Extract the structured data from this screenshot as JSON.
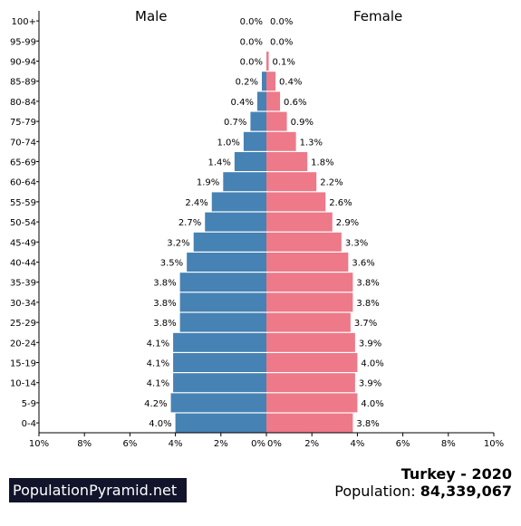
{
  "labels": {
    "male": "Male",
    "female": "Female"
  },
  "footer": {
    "brand": "PopulationPyramid.net",
    "country_year": "Turkey - 2020",
    "population_label": "Population: ",
    "population_value": "84,339,067"
  },
  "colors": {
    "male": "#4682b4",
    "female": "#ee7989"
  },
  "chart_data": {
    "type": "bar",
    "orientation": "horizontal-pyramid",
    "categories": [
      "100+",
      "95-99",
      "90-94",
      "85-89",
      "80-84",
      "75-79",
      "70-74",
      "65-69",
      "60-64",
      "55-59",
      "50-54",
      "45-49",
      "40-44",
      "35-39",
      "30-34",
      "25-29",
      "20-24",
      "15-19",
      "10-14",
      "5-9",
      "0-4"
    ],
    "series": [
      {
        "name": "Male",
        "values": [
          0.0,
          0.0,
          0.0,
          0.2,
          0.4,
          0.7,
          1.0,
          1.4,
          1.9,
          2.4,
          2.7,
          3.2,
          3.5,
          3.8,
          3.8,
          3.8,
          4.1,
          4.1,
          4.1,
          4.2,
          4.0
        ],
        "value_labels": [
          "0.0%",
          "0.0%",
          "0.0%",
          "0.2%",
          "0.4%",
          "0.7%",
          "1.0%",
          "1.4%",
          "1.9%",
          "2.4%",
          "2.7%",
          "3.2%",
          "3.5%",
          "3.8%",
          "3.8%",
          "3.8%",
          "4.1%",
          "4.1%",
          "4.1%",
          "4.2%",
          "4.0%"
        ]
      },
      {
        "name": "Female",
        "values": [
          0.0,
          0.0,
          0.1,
          0.4,
          0.6,
          0.9,
          1.3,
          1.8,
          2.2,
          2.6,
          2.9,
          3.3,
          3.6,
          3.8,
          3.8,
          3.7,
          3.9,
          4.0,
          3.9,
          4.0,
          3.8
        ],
        "value_labels": [
          "0.0%",
          "0.0%",
          "0.1%",
          "0.4%",
          "0.6%",
          "0.9%",
          "1.3%",
          "1.8%",
          "2.2%",
          "2.6%",
          "2.9%",
          "3.3%",
          "3.6%",
          "3.8%",
          "3.8%",
          "3.7%",
          "3.9%",
          "4.0%",
          "3.9%",
          "4.0%",
          "3.8%"
        ]
      }
    ],
    "xlim": [
      -10,
      10
    ],
    "x_tick_labels": [
      "10%",
      "8%",
      "6%",
      "4%",
      "2%",
      "0%",
      "0%",
      "2%",
      "4%",
      "6%",
      "8%",
      "10%"
    ],
    "grid": false
  }
}
